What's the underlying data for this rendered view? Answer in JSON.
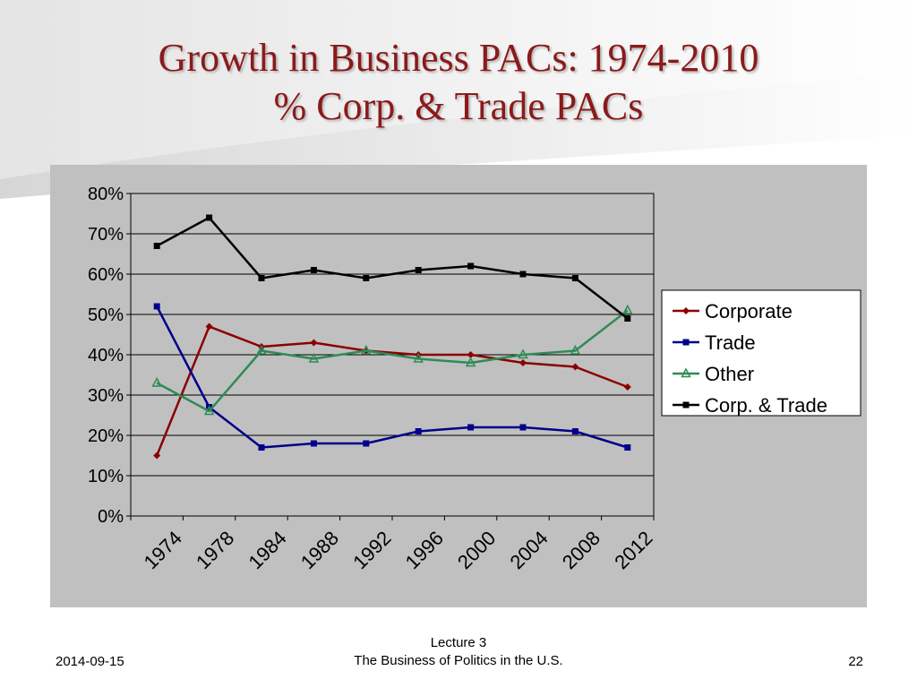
{
  "slide": {
    "title_line1": "Growth in Business PACs: 1974-2010",
    "title_line2": "% Corp. & Trade PACs"
  },
  "footer": {
    "date": "2014-09-15",
    "center_line1": "Lecture 3",
    "center_line2": "The Business of Politics in the U.S.",
    "page": "22"
  },
  "colors": {
    "title": "#8b1a1a",
    "plot_bg": "#c0c0c0",
    "corporate": "#8b0000",
    "trade": "#00008b",
    "other": "#2e8b57",
    "corp_trade": "#000000"
  },
  "chart_data": {
    "type": "line",
    "title": "",
    "xlabel": "",
    "ylabel": "",
    "x_tick_labels": [
      "1974",
      "1978",
      "1984",
      "1988",
      "1992",
      "1996",
      "2000",
      "2004",
      "2008",
      "2012"
    ],
    "y_tick_labels": [
      "0%",
      "10%",
      "20%",
      "30%",
      "40%",
      "50%",
      "60%",
      "70%",
      "80%"
    ],
    "ylim": [
      0,
      0.8
    ],
    "grid": true,
    "legend_position": "right",
    "series": [
      {
        "name": "Corporate",
        "color": "#8b0000",
        "marker": "diamond",
        "values": [
          0.15,
          0.47,
          0.42,
          0.43,
          0.41,
          0.4,
          0.4,
          0.38,
          0.37,
          0.32
        ]
      },
      {
        "name": "Trade",
        "color": "#00008b",
        "marker": "square",
        "values": [
          0.52,
          0.27,
          0.17,
          0.18,
          0.18,
          0.21,
          0.22,
          0.22,
          0.21,
          0.17
        ]
      },
      {
        "name": "Other",
        "color": "#2e8b57",
        "marker": "triangle",
        "values": [
          0.33,
          0.26,
          0.41,
          0.39,
          0.41,
          0.39,
          0.38,
          0.4,
          0.41,
          0.51
        ]
      },
      {
        "name": "Corp. & Trade",
        "color": "#000000",
        "marker": "square",
        "values": [
          0.67,
          0.74,
          0.59,
          0.61,
          0.59,
          0.61,
          0.62,
          0.6,
          0.59,
          0.49
        ]
      }
    ]
  }
}
